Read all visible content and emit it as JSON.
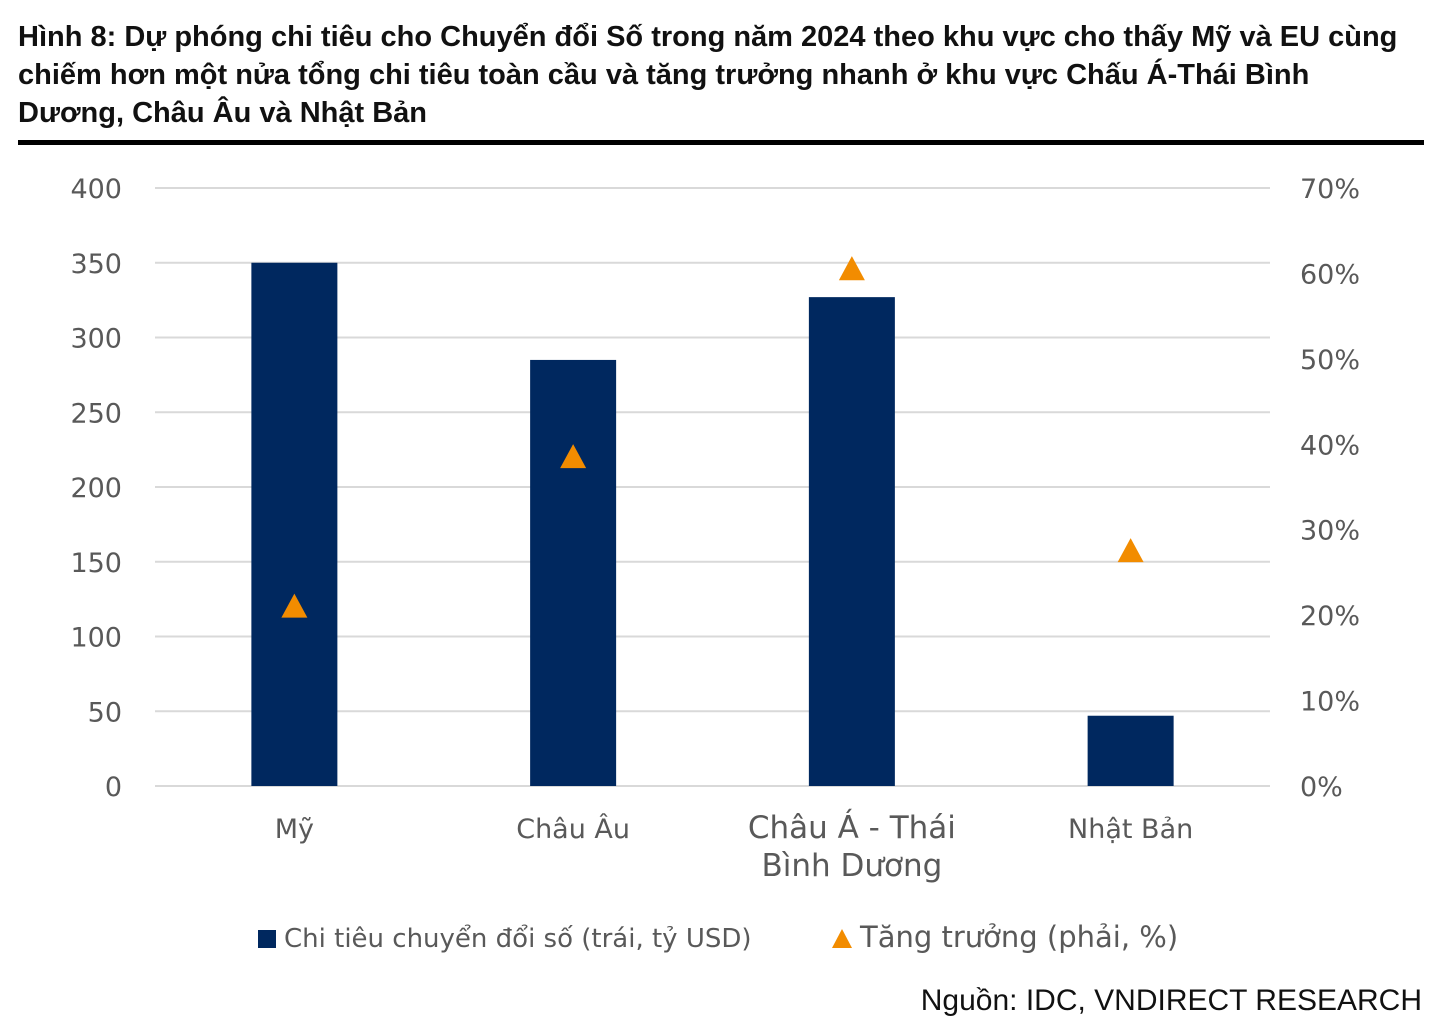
{
  "title": "Hình 8: Dự phóng chi tiêu cho Chuyển đổi Số trong năm 2024 theo khu vực cho thấy Mỹ và EU cùng chiếm hơn một nửa tổng chi tiêu toàn cầu và tăng trưởng nhanh ở khu vực Chấu Á-Thái Bình Dương, Châu Âu và Nhật Bản",
  "source": "Nguồn: IDC, VNDIRECT RESEARCH",
  "colors": {
    "bar": "#00285f",
    "marker": "#f28c00",
    "grid": "#d9d9d9",
    "tick": "#595959"
  },
  "chart_data": {
    "type": "bar",
    "categories": [
      [
        "Mỹ"
      ],
      [
        "Châu Âu"
      ],
      [
        "Châu Á - Thái",
        "Bình Dương"
      ],
      [
        "Nhật Bản"
      ]
    ],
    "series": [
      {
        "name": "Chi tiêu chuyển đổi số (trái, tỷ USD)",
        "type": "bar",
        "axis": "left",
        "values": [
          350,
          285,
          327,
          47
        ]
      },
      {
        "name": "Tăng trưởng (phải, %)",
        "type": "marker",
        "axis": "right",
        "values": [
          21,
          38.5,
          60.5,
          27.5
        ]
      }
    ],
    "y_left": {
      "ylim": [
        0,
        400
      ],
      "ticks": [
        "0",
        "50",
        "100",
        "150",
        "200",
        "250",
        "300",
        "350",
        "400"
      ]
    },
    "y_right": {
      "ylim": [
        0,
        70
      ],
      "ticks": [
        "0%",
        "10%",
        "20%",
        "30%",
        "40%",
        "50%",
        "60%",
        "70%"
      ]
    },
    "grid": true,
    "legend_position": "bottom"
  }
}
